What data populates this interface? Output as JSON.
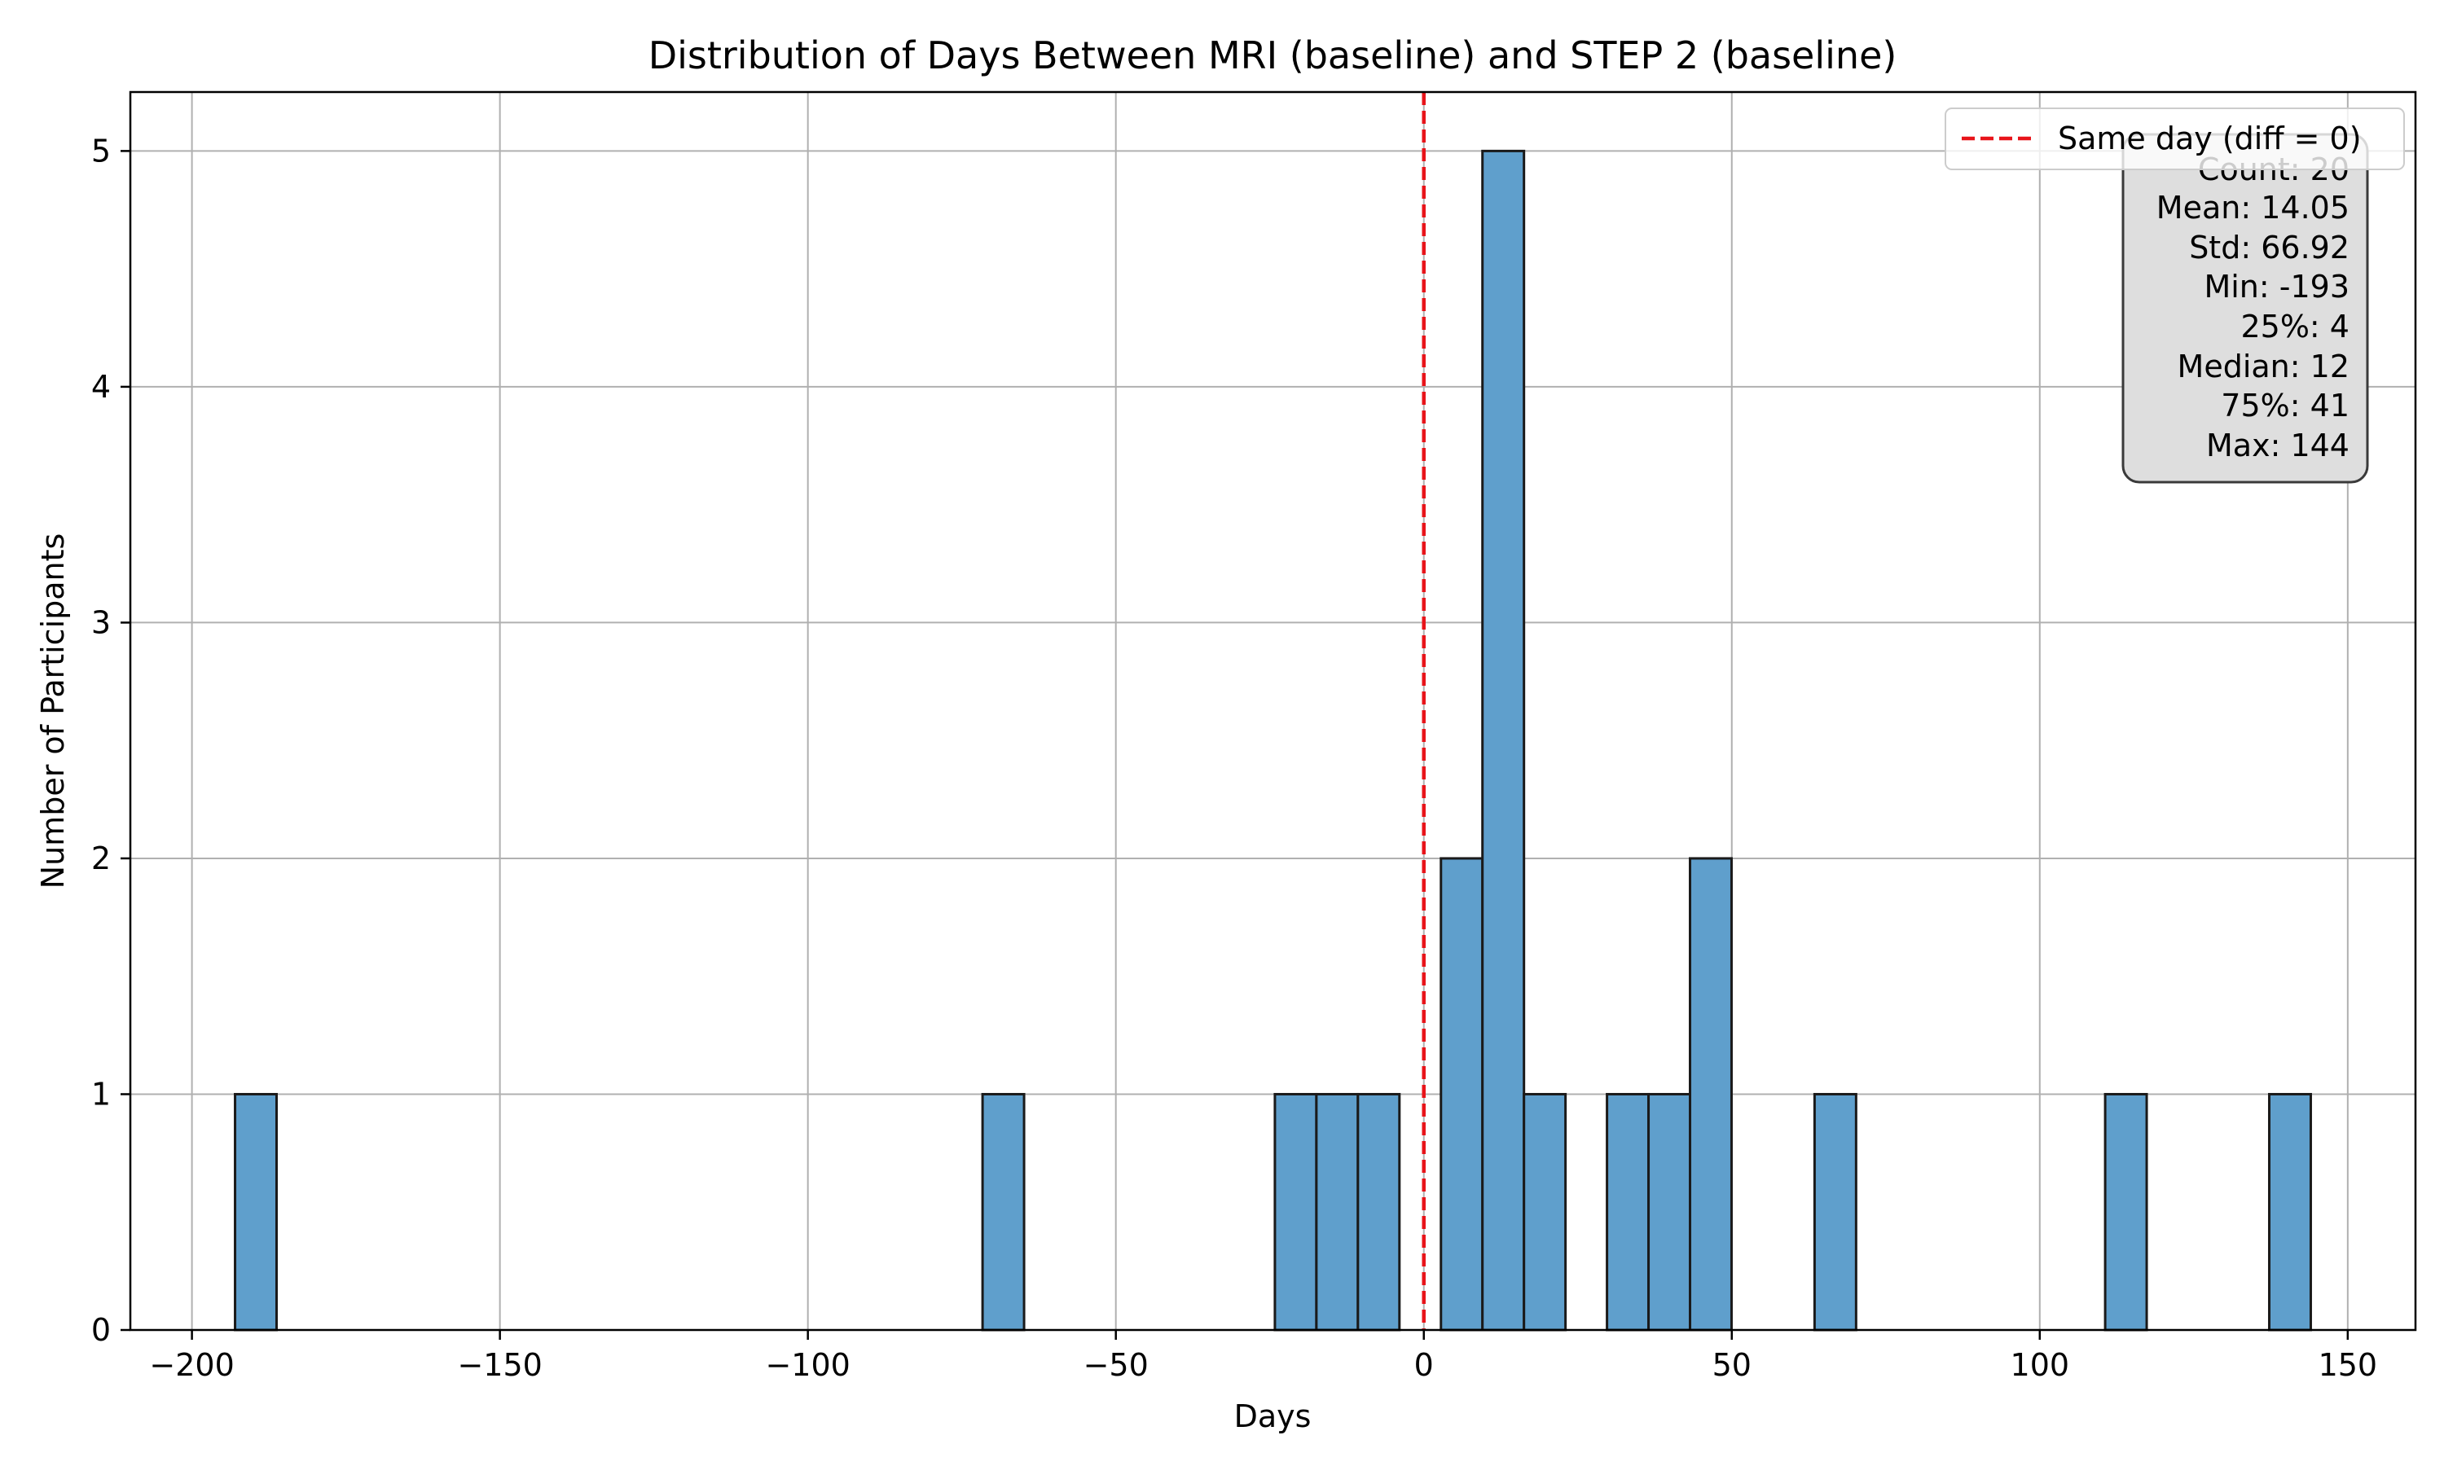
{
  "chart_data": {
    "type": "bar",
    "title": "Distribution of Days Between MRI (baseline) and STEP 2 (baseline)",
    "xlabel": "Days",
    "ylabel": "Number of Participants",
    "xlim": [
      -210,
      161
    ],
    "ylim": [
      0,
      5.25
    ],
    "x_ticks": [
      -200,
      -150,
      -100,
      -50,
      0,
      50,
      100,
      150
    ],
    "x_tick_labels": [
      "−200",
      "−150",
      "−100",
      "−50",
      "0",
      "50",
      "100",
      "150"
    ],
    "y_ticks": [
      0,
      1,
      2,
      3,
      4,
      5
    ],
    "y_tick_labels": [
      "0",
      "1",
      "2",
      "3",
      "4",
      "5"
    ],
    "grid": true,
    "bar_color": "#5f9fcc",
    "bar_edge_color": "#1a1a1a",
    "bins": [
      {
        "start": -193.0,
        "end": -186.26,
        "count": 1
      },
      {
        "start": -71.64,
        "end": -64.9,
        "count": 1
      },
      {
        "start": -24.18,
        "end": -17.44,
        "count": 1
      },
      {
        "start": -17.44,
        "end": -10.7,
        "count": 1
      },
      {
        "start": -10.7,
        "end": -3.96,
        "count": 1
      },
      {
        "start": 2.78,
        "end": 9.52,
        "count": 2
      },
      {
        "start": 9.52,
        "end": 16.26,
        "count": 5
      },
      {
        "start": 16.26,
        "end": 23.0,
        "count": 1
      },
      {
        "start": 29.74,
        "end": 36.48,
        "count": 1
      },
      {
        "start": 36.48,
        "end": 43.22,
        "count": 1
      },
      {
        "start": 43.22,
        "end": 49.96,
        "count": 2
      },
      {
        "start": 63.44,
        "end": 70.18,
        "count": 1
      },
      {
        "start": 110.62,
        "end": 117.36,
        "count": 1
      },
      {
        "start": 137.26,
        "end": 144.0,
        "count": 1
      }
    ],
    "reference_line": {
      "x": 0,
      "color": "#e8141a",
      "style": "dashed",
      "label": "Same day (diff = 0)"
    },
    "legend": {
      "placement": "top-right",
      "entries": [
        "Same day (diff = 0)"
      ]
    },
    "stats_box": {
      "placement": "top-right",
      "lines": [
        "Count: 20",
        "Mean: 14.05",
        "Std: 66.92",
        "Min: -193",
        "25%: 4",
        "Median: 12",
        "75%: 41",
        "Max: 144"
      ]
    }
  }
}
